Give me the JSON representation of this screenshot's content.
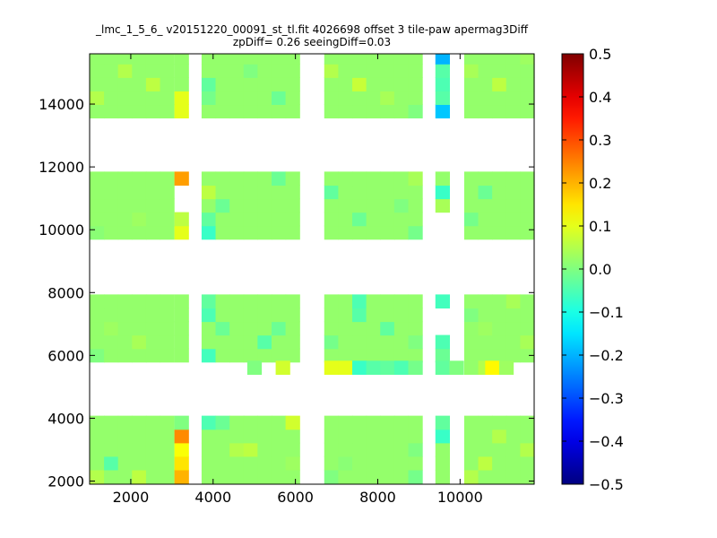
{
  "chart_data": {
    "type": "heatmap",
    "title": "_lmc_1_5_6_ v20151220_00091_st_tl.fit 4026698 offset 3 tile-paw apermag3Diff",
    "subtitle": "zpDiff= 0.26 seeingDiff=0.03",
    "xlim": [
      1000,
      11800
    ],
    "ylim": [
      1900,
      15600
    ],
    "xticks": [
      2000,
      4000,
      6000,
      8000,
      10000
    ],
    "yticks": [
      2000,
      4000,
      6000,
      8000,
      10000,
      12000,
      14000
    ],
    "colorbar": {
      "colormap": "jet",
      "vmin": -0.5,
      "vmax": 0.5,
      "ticks": [
        0.5,
        0.4,
        0.3,
        0.2,
        0.1,
        0.0,
        -0.1,
        -0.2,
        -0.3,
        -0.4,
        -0.5
      ],
      "tick_labels": [
        "0.5",
        "0.4",
        "0.3",
        "0.2",
        "0.1",
        "0.0",
        "−0.1",
        "−0.2",
        "−0.3",
        "−0.4",
        "−0.5"
      ]
    },
    "cell_size": {
      "dx": 340,
      "dy": 430
    },
    "x_columns": {
      "a": [
        1010,
        1350,
        1690,
        2030,
        2370,
        2710
      ],
      "b": [
        3060
      ],
      "c": [
        3720,
        4060,
        4400,
        4740,
        5080,
        5420,
        5760
      ],
      "d": [
        6700,
        7040,
        7380,
        7720,
        8060,
        8400,
        8740
      ],
      "e": [
        9400
      ],
      "f": [
        10100,
        10440,
        10780,
        11120,
        11460
      ]
    },
    "y_rows": {
      "b1": [
        1930,
        2360,
        2790,
        3220,
        3650
      ],
      "b2": [
        5790,
        6220,
        6650,
        7080,
        7510
      ],
      "b3": [
        9700,
        10130,
        10560,
        10990,
        11420
      ],
      "b4": [
        13560,
        13990,
        14420,
        14850,
        15280
      ]
    },
    "default_value": 0.02,
    "cells": [
      {
        "x": 1010,
        "y": 1930,
        "v": 0.05
      },
      {
        "x": 1350,
        "y": 2360,
        "v": -0.04
      },
      {
        "x": 2030,
        "y": 1930,
        "v": 0.06
      },
      {
        "x": 3060,
        "y": 1930,
        "v": 0.2
      },
      {
        "x": 3060,
        "y": 2360,
        "v": 0.15
      },
      {
        "x": 3060,
        "y": 2790,
        "v": 0.12
      },
      {
        "x": 3060,
        "y": 3220,
        "v": 0.24
      },
      {
        "x": 3060,
        "y": 3650,
        "v": 0.0
      },
      {
        "x": 3720,
        "y": 3650,
        "v": -0.05
      },
      {
        "x": 4060,
        "y": 3650,
        "v": -0.02
      },
      {
        "x": 4400,
        "y": 2790,
        "v": 0.05
      },
      {
        "x": 4740,
        "y": 2790,
        "v": 0.06
      },
      {
        "x": 5760,
        "y": 3650,
        "v": 0.08
      },
      {
        "x": 5760,
        "y": 2360,
        "v": 0.03
      },
      {
        "x": 6700,
        "y": 1930,
        "v": 0.0
      },
      {
        "x": 7040,
        "y": 2360,
        "v": 0.01
      },
      {
        "x": 8740,
        "y": 1930,
        "v": -0.01
      },
      {
        "x": 8740,
        "y": 2790,
        "v": 0.0
      },
      {
        "x": 9400,
        "y": 3220,
        "v": -0.07
      },
      {
        "x": 9400,
        "y": 3650,
        "v": -0.03
      },
      {
        "x": 10100,
        "y": 1930,
        "v": 0.05
      },
      {
        "x": 10440,
        "y": 2360,
        "v": 0.06
      },
      {
        "x": 10780,
        "y": 3220,
        "v": 0.05
      },
      {
        "x": 11460,
        "y": 2790,
        "v": 0.05
      },
      {
        "x": 1010,
        "y": 5790,
        "v": 0.0
      },
      {
        "x": 1350,
        "y": 6650,
        "v": 0.03
      },
      {
        "x": 2030,
        "y": 6220,
        "v": 0.04
      },
      {
        "x": 3720,
        "y": 5790,
        "v": -0.06
      },
      {
        "x": 3720,
        "y": 7080,
        "v": -0.05
      },
      {
        "x": 3720,
        "y": 7510,
        "v": -0.03
      },
      {
        "x": 4060,
        "y": 6650,
        "v": -0.02
      },
      {
        "x": 5080,
        "y": 6220,
        "v": -0.04
      },
      {
        "x": 5420,
        "y": 6650,
        "v": -0.02
      },
      {
        "x": 6700,
        "y": 6220,
        "v": -0.01
      },
      {
        "x": 7380,
        "y": 7510,
        "v": -0.05
      },
      {
        "x": 7380,
        "y": 7080,
        "v": -0.04
      },
      {
        "x": 8060,
        "y": 6650,
        "v": -0.03
      },
      {
        "x": 8740,
        "y": 6220,
        "v": 0.0
      },
      {
        "x": 9400,
        "y": 5790,
        "v": -0.02
      },
      {
        "x": 9400,
        "y": 6220,
        "v": -0.05
      },
      {
        "x": 9400,
        "y": 7510,
        "v": -0.06
      },
      {
        "x": 10100,
        "y": 7080,
        "v": 0.0
      },
      {
        "x": 10440,
        "y": 6650,
        "v": 0.03
      },
      {
        "x": 11120,
        "y": 7510,
        "v": 0.04
      },
      {
        "x": 11460,
        "y": 6220,
        "v": 0.04
      },
      {
        "x": 1010,
        "y": 9700,
        "v": 0.01
      },
      {
        "x": 2030,
        "y": 10130,
        "v": 0.03
      },
      {
        "x": 2370,
        "y": 10560,
        "v": 0.02
      },
      {
        "x": 3060,
        "y": 9700,
        "v": 0.1
      },
      {
        "x": 3060,
        "y": 10130,
        "v": 0.06
      },
      {
        "x": 3060,
        "y": 11420,
        "v": 0.22
      },
      {
        "x": 3720,
        "y": 9700,
        "v": -0.07
      },
      {
        "x": 3720,
        "y": 10130,
        "v": -0.03
      },
      {
        "x": 3720,
        "y": 10990,
        "v": 0.06
      },
      {
        "x": 4060,
        "y": 10560,
        "v": -0.02
      },
      {
        "x": 5420,
        "y": 11420,
        "v": -0.02
      },
      {
        "x": 6700,
        "y": 10990,
        "v": -0.03
      },
      {
        "x": 7380,
        "y": 10130,
        "v": -0.02
      },
      {
        "x": 8400,
        "y": 10560,
        "v": 0.0
      },
      {
        "x": 8740,
        "y": 11420,
        "v": 0.04
      },
      {
        "x": 8740,
        "y": 9700,
        "v": -0.01
      },
      {
        "x": 9400,
        "y": 10560,
        "v": 0.04
      },
      {
        "x": 9400,
        "y": 10990,
        "v": -0.07
      },
      {
        "x": 10100,
        "y": 10130,
        "v": -0.01
      },
      {
        "x": 10440,
        "y": 10990,
        "v": -0.02
      },
      {
        "x": 11120,
        "y": 10560,
        "v": 0.02
      },
      {
        "x": 1010,
        "y": 13990,
        "v": 0.05
      },
      {
        "x": 1690,
        "y": 14850,
        "v": 0.05
      },
      {
        "x": 2370,
        "y": 14420,
        "v": 0.06
      },
      {
        "x": 3060,
        "y": 13560,
        "v": 0.1
      },
      {
        "x": 3060,
        "y": 13990,
        "v": 0.1
      },
      {
        "x": 3720,
        "y": 13990,
        "v": -0.01
      },
      {
        "x": 3720,
        "y": 14420,
        "v": -0.03
      },
      {
        "x": 4740,
        "y": 14850,
        "v": 0.0
      },
      {
        "x": 5420,
        "y": 13990,
        "v": -0.02
      },
      {
        "x": 6700,
        "y": 14850,
        "v": 0.05
      },
      {
        "x": 7380,
        "y": 14420,
        "v": 0.07
      },
      {
        "x": 8060,
        "y": 13990,
        "v": 0.04
      },
      {
        "x": 8740,
        "y": 13560,
        "v": 0.0
      },
      {
        "x": 9400,
        "y": 13560,
        "v": -0.18
      },
      {
        "x": 9400,
        "y": 13990,
        "v": -0.04
      },
      {
        "x": 9400,
        "y": 14420,
        "v": -0.05
      },
      {
        "x": 9400,
        "y": 14850,
        "v": -0.04
      },
      {
        "x": 9400,
        "y": 15280,
        "v": -0.2
      },
      {
        "x": 10100,
        "y": 14850,
        "v": 0.04
      },
      {
        "x": 10780,
        "y": 14420,
        "v": 0.06
      },
      {
        "x": 11460,
        "y": 15280,
        "v": 0.03
      }
    ],
    "extra_cells": [
      {
        "x": 4830,
        "y": 5400,
        "v": 0.0
      },
      {
        "x": 5520,
        "y": 5400,
        "v": 0.08
      },
      {
        "x": 6700,
        "y": 5400,
        "v": 0.1
      },
      {
        "x": 7040,
        "y": 5400,
        "v": 0.1
      },
      {
        "x": 7380,
        "y": 5400,
        "v": -0.07
      },
      {
        "x": 7720,
        "y": 5400,
        "v": -0.04
      },
      {
        "x": 8060,
        "y": 5400,
        "v": -0.03
      },
      {
        "x": 8400,
        "y": 5400,
        "v": -0.05
      },
      {
        "x": 8740,
        "y": 5400,
        "v": -0.01
      },
      {
        "x": 9400,
        "y": 5400,
        "v": -0.03
      },
      {
        "x": 9740,
        "y": 5400,
        "v": 0.0
      },
      {
        "x": 10100,
        "y": 5400,
        "v": 0.02
      },
      {
        "x": 10440,
        "y": 5400,
        "v": 0.05
      },
      {
        "x": 10610,
        "y": 5400,
        "v": 0.13
      },
      {
        "x": 10950,
        "y": 5400,
        "v": 0.03
      }
    ],
    "missing_cells": [
      {
        "x": 3060,
        "y": 10560
      },
      {
        "x": 3060,
        "y": 10990
      },
      {
        "x": 9400,
        "y": 9700
      },
      {
        "x": 9400,
        "y": 10130
      },
      {
        "x": 9400,
        "y": 6650
      },
      {
        "x": 9400,
        "y": 7080
      }
    ]
  }
}
